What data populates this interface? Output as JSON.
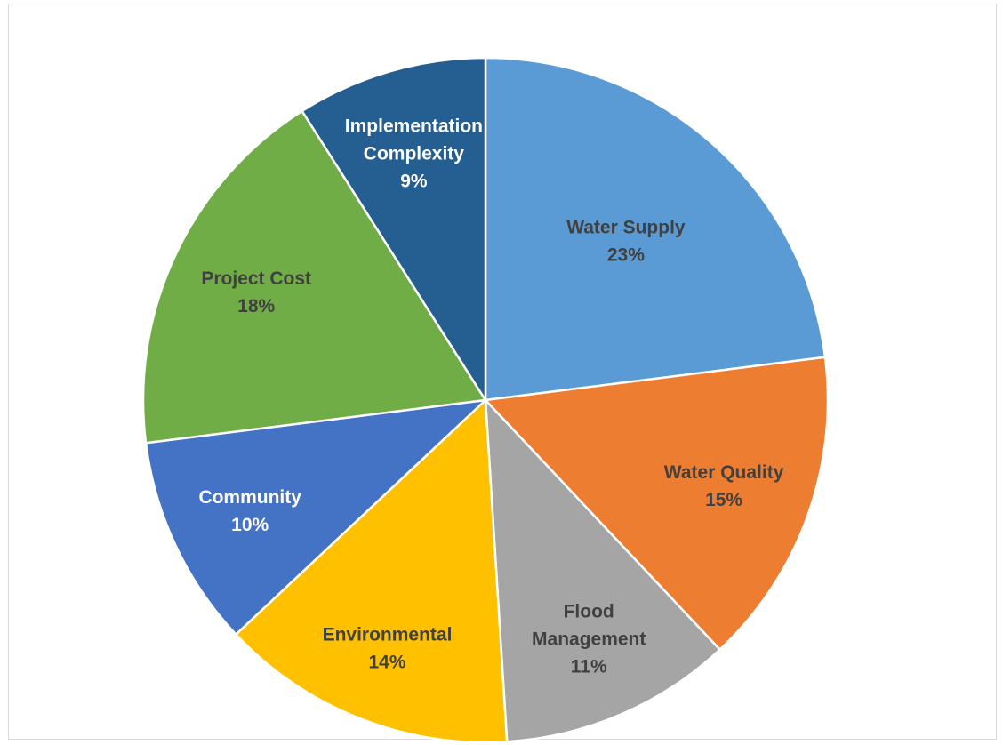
{
  "chart_data": {
    "type": "pie",
    "title": "",
    "categories": [
      "Water Supply",
      "Water Quality",
      "Flood Management",
      "Environmental",
      "Community",
      "Project Cost",
      "Implementation Complexity"
    ],
    "values": [
      23,
      15,
      11,
      14,
      10,
      18,
      9
    ],
    "labels": [
      [
        "Water Supply",
        "23%"
      ],
      [
        "Water Quality",
        "15%"
      ],
      [
        "Flood",
        "Management",
        "11%"
      ],
      [
        "Environmental",
        "14%"
      ],
      [
        "Community",
        "10%"
      ],
      [
        "Project Cost",
        "18%"
      ],
      [
        "Implementation",
        "Complexity",
        "9%"
      ]
    ],
    "colors": [
      "#5b9bd5",
      "#ed7d31",
      "#a5a5a5",
      "#ffc000",
      "#4472c4",
      "#70ad47",
      "#255e91"
    ],
    "label_colors": [
      "#404040",
      "#404040",
      "#404040",
      "#404040",
      "#ffffff",
      "#404040",
      "#ffffff"
    ],
    "start_angle": "12 o'clock",
    "direction": "clockwise",
    "legend": "none"
  }
}
